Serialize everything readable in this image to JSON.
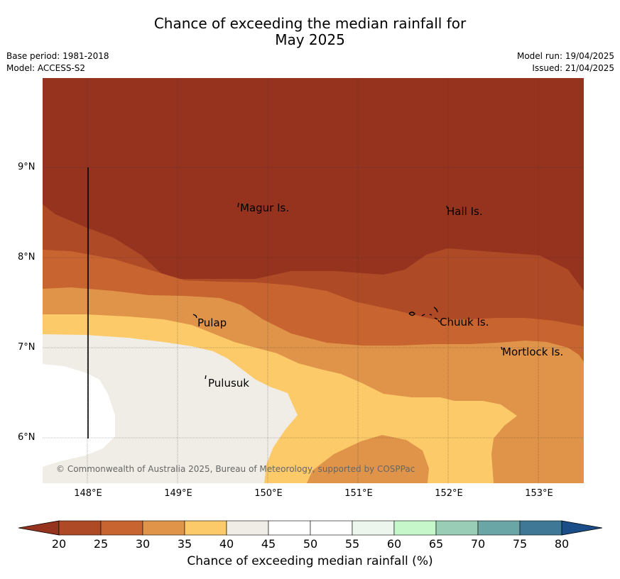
{
  "title_line1": "Chance of exceeding the median rainfall for",
  "title_line2": "May 2025",
  "base_period": "Base period: 1981-2018",
  "model": "Model: ACCESS-S2",
  "model_run": "Model run: 19/04/2025",
  "issued": "Issued: 21/04/2025",
  "lat_labels": [
    "9°N",
    "8°N",
    "7°N",
    "6°N"
  ],
  "lon_labels": [
    "148°E",
    "149°E",
    "150°E",
    "151°E",
    "152°E",
    "153°E"
  ],
  "places": [
    "Magur Is.",
    "Hall Is.",
    "Pulap",
    "Chuuk Is.",
    "Mortlock Is.",
    "Pulusuk"
  ],
  "copyright": "© Commonwealth of Australia 2025, Bureau of Meteorology, supported by COSPPac",
  "colorbar": {
    "label": "Chance of exceeding median rainfall (%)",
    "ticks": [
      "20",
      "25",
      "30",
      "35",
      "40",
      "45",
      "50",
      "55",
      "60",
      "65",
      "70",
      "75",
      "80"
    ],
    "colors": [
      "#ae4a26",
      "#c8642f",
      "#e0944a",
      "#fdca69",
      "#f0ece6",
      "#ffffff",
      "#ffffff",
      "#ecf6ec",
      "#c6f7cb",
      "#99cdb5",
      "#6ba6a7",
      "#3f7897"
    ],
    "under_color": "#96331f",
    "over_color": "#1b4e88"
  }
}
